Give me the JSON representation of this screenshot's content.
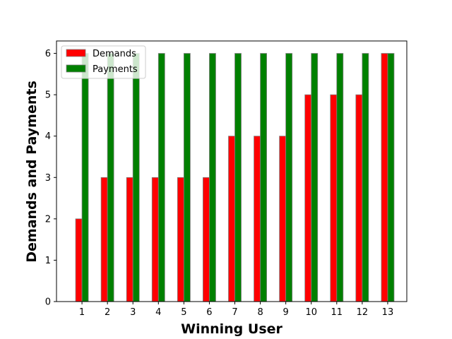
{
  "chart_data": {
    "type": "bar",
    "categories": [
      "1",
      "2",
      "3",
      "4",
      "5",
      "6",
      "7",
      "8",
      "9",
      "10",
      "11",
      "12",
      "13"
    ],
    "series": [
      {
        "name": "Demands",
        "color": "#ff0000",
        "values": [
          2,
          3,
          3,
          3,
          3,
          3,
          4,
          4,
          4,
          5,
          5,
          5,
          6
        ]
      },
      {
        "name": "Payments",
        "color": "#008000",
        "values": [
          6,
          6,
          6,
          6,
          6,
          6,
          6,
          6,
          6,
          6,
          6,
          6,
          6
        ]
      }
    ],
    "xlabel": "Winning User",
    "ylabel": "Demands and Payments",
    "ylim": [
      0,
      6.3
    ],
    "yticks": [
      0,
      1,
      2,
      3,
      4,
      5,
      6
    ],
    "grid": false,
    "legend_position": "top-left",
    "bar_edge_color": "#808080"
  }
}
